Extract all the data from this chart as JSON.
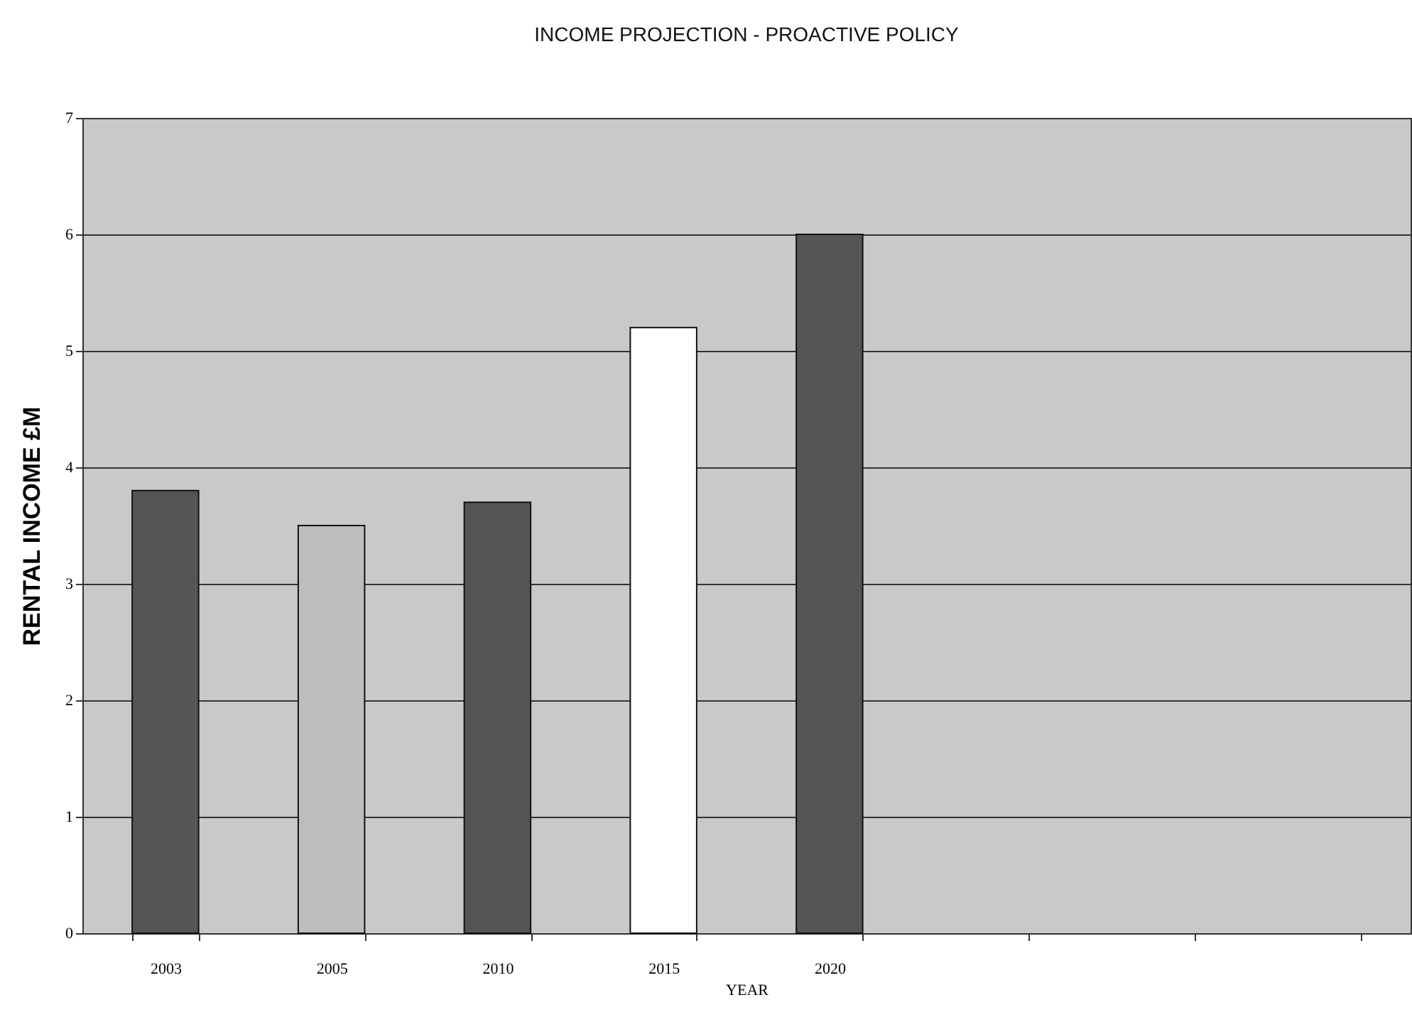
{
  "chart_data": {
    "type": "bar",
    "title": "INCOME PROJECTION - PROACTIVE POLICY",
    "xlabel": "YEAR",
    "ylabel": "RENTAL INCOME £M",
    "categories": [
      "2003",
      "2005",
      "2010",
      "2015",
      "2020",
      null,
      null,
      null
    ],
    "values": [
      3.8,
      3.5,
      3.7,
      5.2,
      6.0,
      null,
      null,
      null
    ],
    "colors": [
      "#555555",
      "#bdbdbd",
      "#555555",
      "#ffffff",
      "#555555",
      null,
      null,
      null
    ],
    "ylim": [
      0,
      7
    ],
    "yticks": [
      0,
      1,
      2,
      3,
      4,
      5,
      6,
      7
    ],
    "grid": "y"
  }
}
